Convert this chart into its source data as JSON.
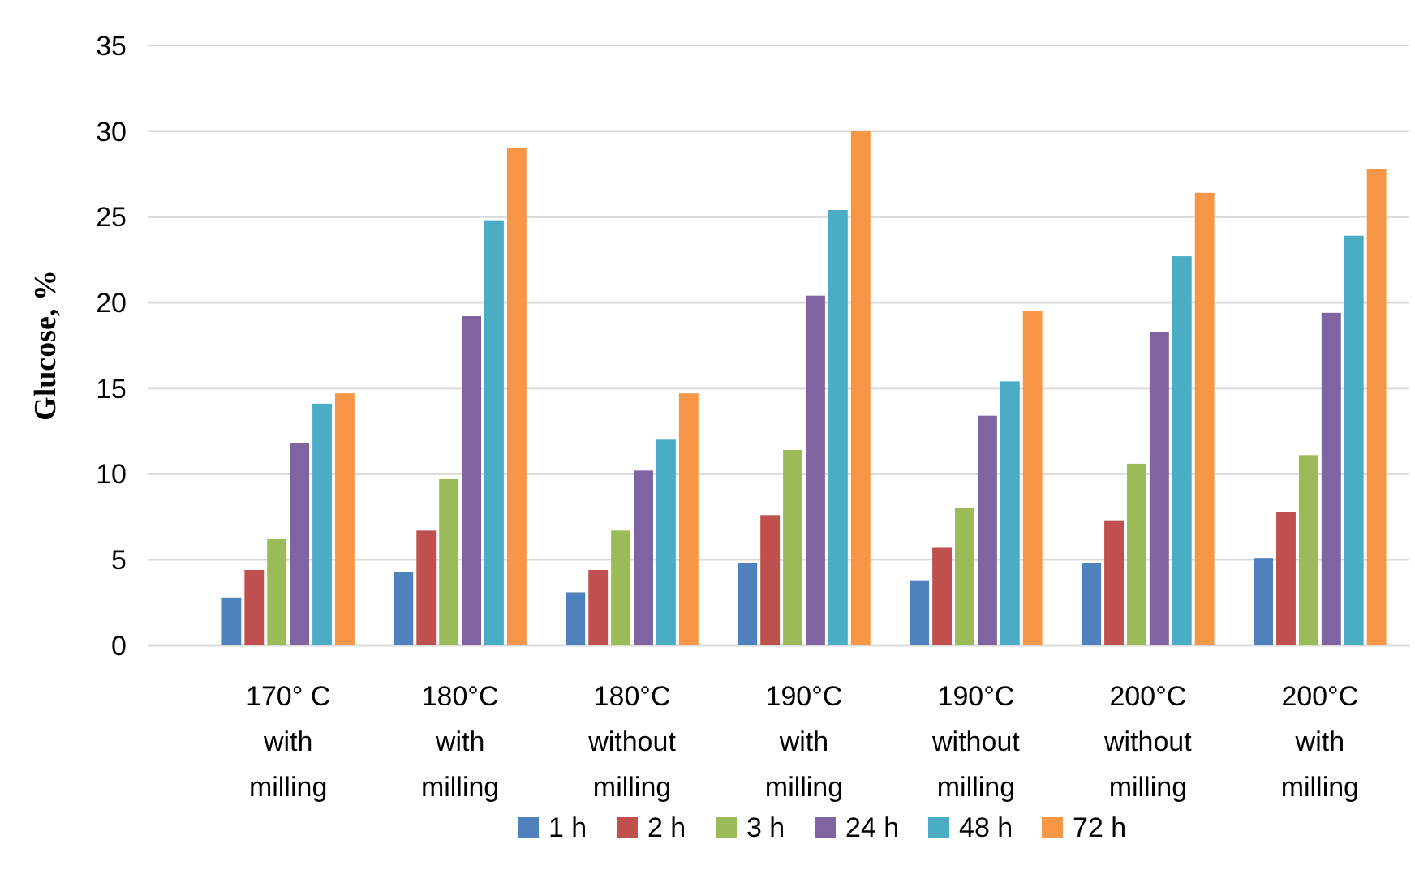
{
  "chart_data": {
    "type": "bar",
    "ylabel": "Glucose, %",
    "categories": [
      "170° C with milling",
      "180°C with milling",
      "180°C without milling",
      "190°C with milling",
      "190°C without milling",
      "200°C without milling",
      "200°C with milling"
    ],
    "series": [
      {
        "name": "1 h",
        "color": "#4f81bd",
        "values": [
          2.8,
          4.3,
          3.1,
          4.8,
          3.8,
          4.8,
          5.1
        ]
      },
      {
        "name": "2 h",
        "color": "#c0504d",
        "values": [
          4.4,
          6.7,
          4.4,
          7.6,
          5.7,
          7.3,
          7.8
        ]
      },
      {
        "name": "3 h",
        "color": "#9bbb59",
        "values": [
          6.2,
          9.7,
          6.7,
          11.4,
          8.0,
          10.6,
          11.1
        ]
      },
      {
        "name": "24 h",
        "color": "#8064a2",
        "values": [
          11.8,
          19.2,
          10.2,
          20.4,
          13.4,
          18.3,
          19.4
        ]
      },
      {
        "name": "48 h",
        "color": "#4bacc6",
        "values": [
          14.1,
          24.8,
          12.0,
          25.4,
          15.4,
          22.7,
          23.9
        ]
      },
      {
        "name": "72 h",
        "color": "#f79646",
        "values": [
          14.7,
          29.0,
          14.7,
          30.0,
          19.5,
          26.4,
          27.8
        ]
      }
    ],
    "ylim": [
      0,
      35
    ],
    "yticks": [
      0,
      5,
      10,
      15,
      20,
      25,
      30,
      35
    ],
    "grid": "y",
    "legend": "bottom"
  }
}
